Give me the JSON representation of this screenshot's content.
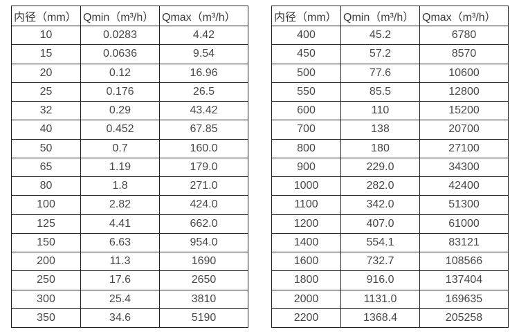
{
  "page": {
    "background": "#ffffff",
    "border_color": "#1f1f1f",
    "header_text_color": "#3d3d3d",
    "cell_text_color": "#474747"
  },
  "tables": [
    {
      "name": "flow-spec-table-small-diameters",
      "headers": [
        "内径（mm）",
        "Qmin（m³/h）",
        "Qmax（m³/h）"
      ],
      "rows": [
        [
          "10",
          "0.0283",
          "4.42"
        ],
        [
          "15",
          "0.0636",
          "9.54"
        ],
        [
          "20",
          "0.12",
          "16.96"
        ],
        [
          "25",
          "0.176",
          "26.5"
        ],
        [
          "32",
          "0.29",
          "43.42"
        ],
        [
          "40",
          "0.452",
          "67.85"
        ],
        [
          "50",
          "0.7",
          "160.0"
        ],
        [
          "65",
          "1.19",
          "179.0"
        ],
        [
          "80",
          "1.8",
          "271.0"
        ],
        [
          "100",
          "2.82",
          "424.0"
        ],
        [
          "125",
          "4.41",
          "662.0"
        ],
        [
          "150",
          "6.63",
          "954.0"
        ],
        [
          "200",
          "11.3",
          "1690"
        ],
        [
          "250",
          "17.6",
          "2650"
        ],
        [
          "300",
          "25.4",
          "3810"
        ],
        [
          "350",
          "34.6",
          "5190"
        ]
      ]
    },
    {
      "name": "flow-spec-table-large-diameters",
      "headers": [
        "内径（mm）",
        "Qmin（m³/h）",
        "Qmax（m³/h）"
      ],
      "rows": [
        [
          "400",
          "45.2",
          "6780"
        ],
        [
          "450",
          "57.2",
          "8570"
        ],
        [
          "500",
          "77.6",
          "10600"
        ],
        [
          "550",
          "85.5",
          "12800"
        ],
        [
          "600",
          "110",
          "15200"
        ],
        [
          "700",
          "138",
          "20700"
        ],
        [
          "800",
          "180",
          "27100"
        ],
        [
          "900",
          "229.0",
          "34300"
        ],
        [
          "1000",
          "282.0",
          "42400"
        ],
        [
          "1100",
          "342.0",
          "51300"
        ],
        [
          "1200",
          "407.0",
          "61000"
        ],
        [
          "1400",
          "554.1",
          "83121"
        ],
        [
          "1600",
          "732.7",
          "108566"
        ],
        [
          "1800",
          "916.0",
          "137404"
        ],
        [
          "2000",
          "1131.0",
          "169635"
        ],
        [
          "2200",
          "1368.4",
          "205258"
        ]
      ]
    }
  ]
}
